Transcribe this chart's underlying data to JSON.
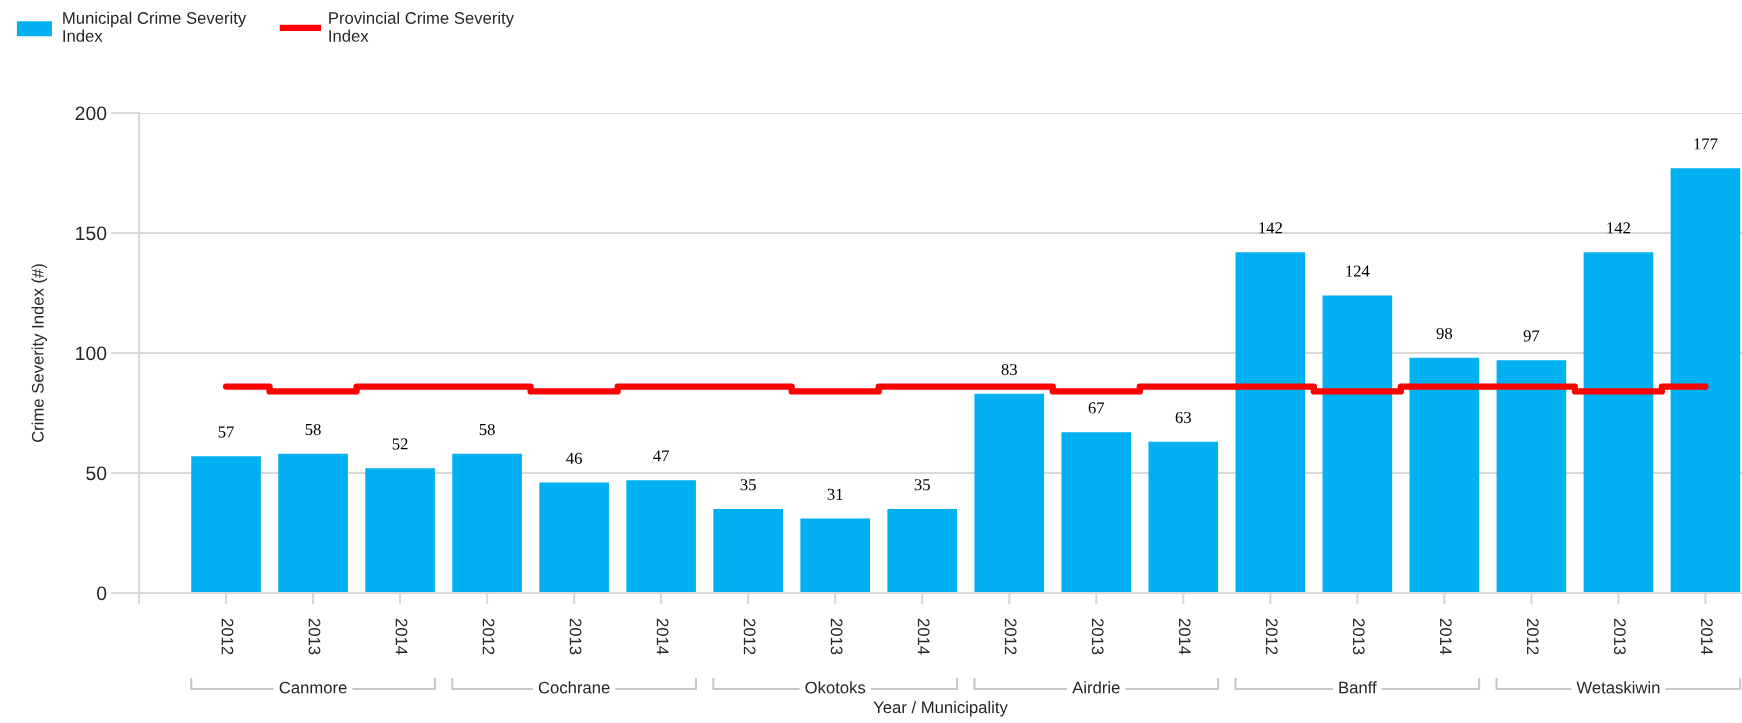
{
  "chart_data": {
    "type": "bar",
    "ylabel": "Crime Severity Index (#)",
    "xlabel": "Year / Municipality",
    "categories": [
      "2012",
      "2013",
      "2014",
      "2012",
      "2013",
      "2014",
      "2012",
      "2013",
      "2014",
      "2012",
      "2013",
      "2014",
      "2012",
      "2013",
      "2014",
      "2012",
      "2013",
      "2014"
    ],
    "annotations": [
      "Canmore",
      "Cochrane",
      "Okotoks",
      "Airdrie",
      "Banff",
      "Wetaskiwin"
    ],
    "series": [
      {
        "name": "Municipal Crime Severity\nIndex",
        "color": "#00b0f0",
        "values": [
          57,
          58,
          52,
          58,
          46,
          47,
          35,
          31,
          35,
          83,
          67,
          63,
          142,
          124,
          98,
          97,
          142,
          177
        ],
        "value_labels": [
          "57",
          "58",
          "52",
          "58",
          "46",
          "47",
          "35",
          "31",
          "35",
          "83",
          "67",
          "63",
          "142",
          "124",
          "98",
          "97",
          "142",
          "177"
        ]
      },
      {
        "name": "Provincial Crime Severity\nIndex",
        "type": "step",
        "color": "#ff0000",
        "values": [
          86,
          84,
          86,
          86,
          84,
          86,
          86,
          84,
          86,
          86,
          84,
          86,
          86,
          84,
          86,
          86,
          84,
          86
        ]
      }
    ],
    "ylim": [
      0,
      200
    ],
    "yticks": [
      0,
      50,
      100,
      150,
      200
    ],
    "grid": "y",
    "legend": "top left"
  }
}
